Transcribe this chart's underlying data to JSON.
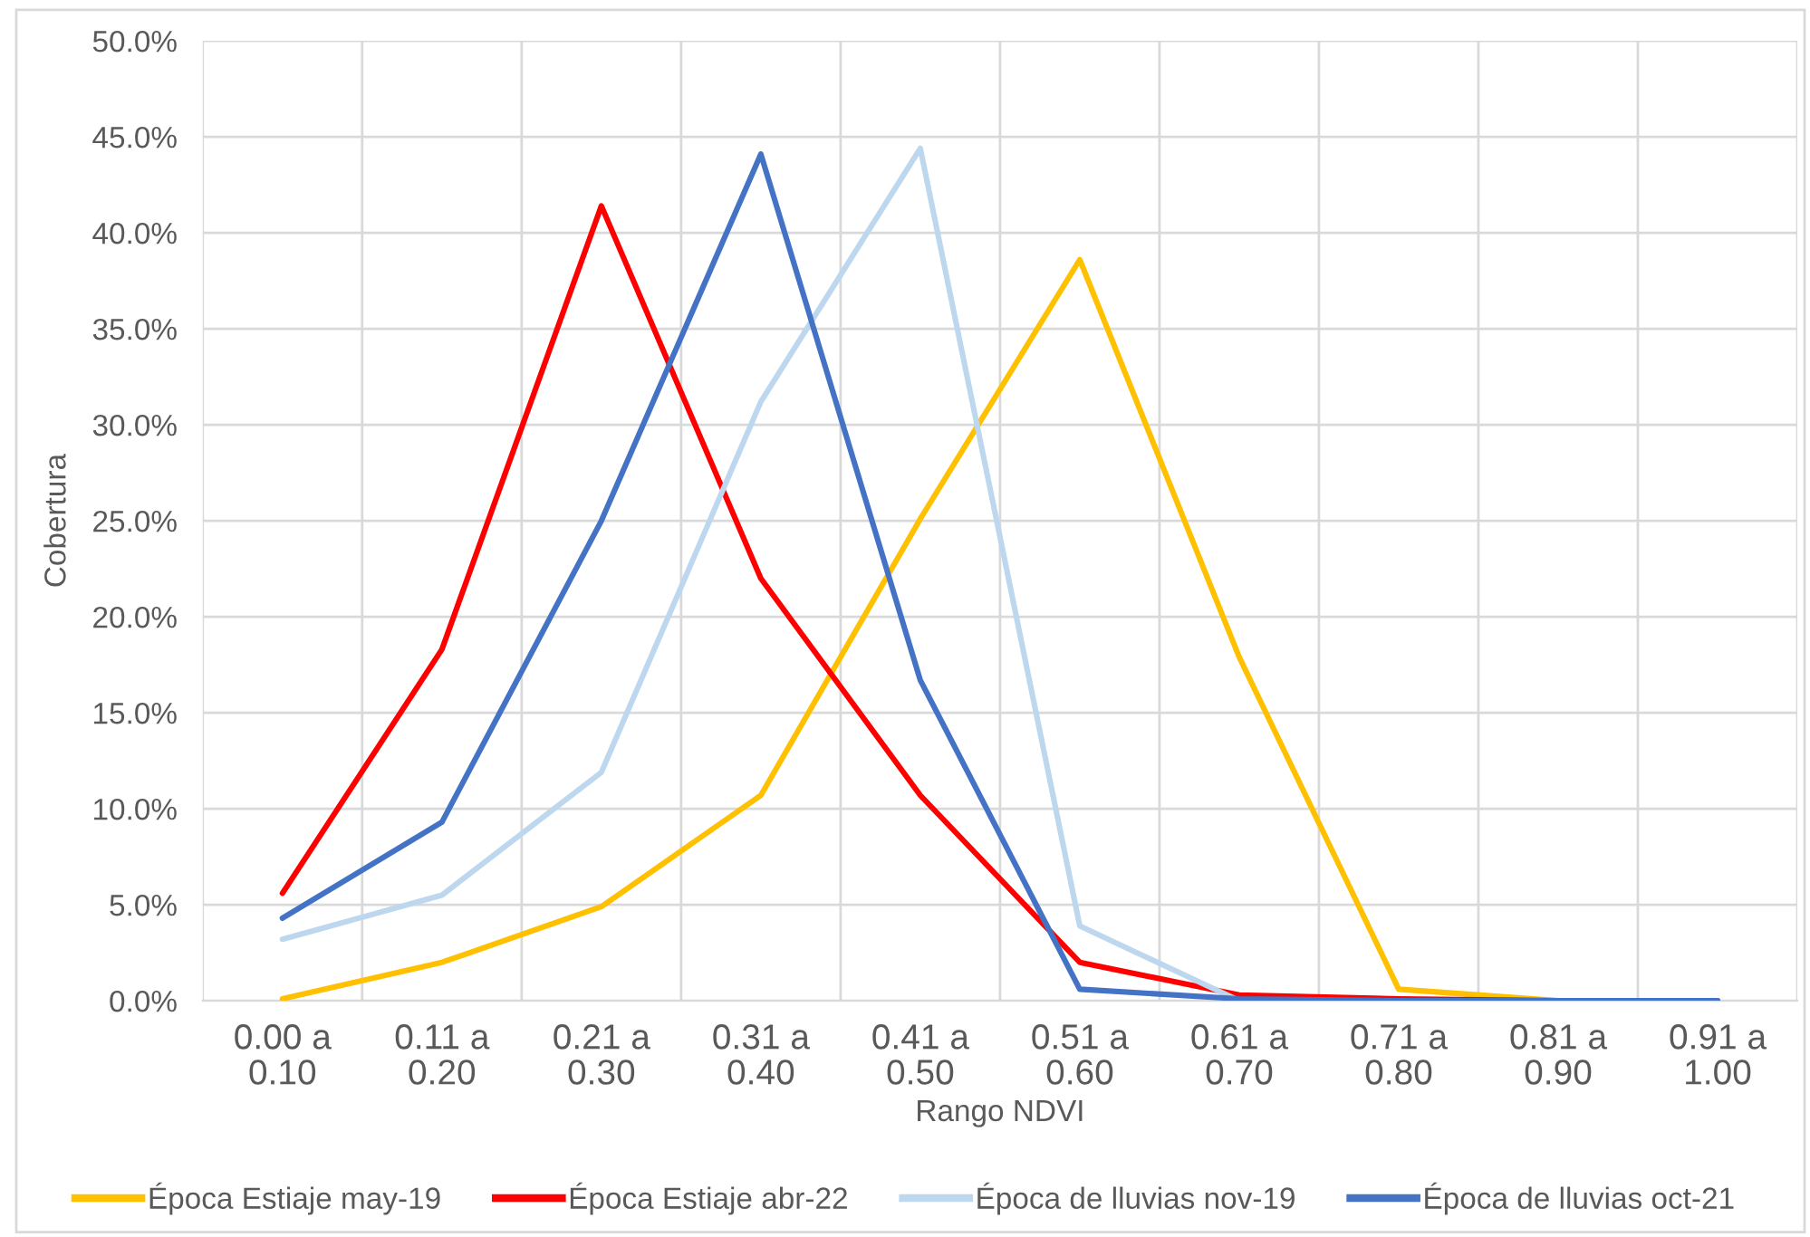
{
  "chart_data": {
    "type": "line",
    "xlabel": "Rango NDVI",
    "ylabel": "Cobertura",
    "categories": [
      "0.00 a 0.10",
      "0.11 a 0.20",
      "0.21 a 0.30",
      "0.31 a 0.40",
      "0.41 a 0.50",
      "0.51 a 0.60",
      "0.61 a 0.70",
      "0.71 a 0.80",
      "0.81 a 0.90",
      "0.91 a 1.00"
    ],
    "series": [
      {
        "name": "Época Estiaje may-19",
        "color": "#ffc000",
        "values": [
          0.1,
          2.0,
          4.9,
          10.7,
          25.1,
          38.6,
          17.9,
          0.6,
          0.0,
          0.0
        ]
      },
      {
        "name": "Época Estiaje abr-22",
        "color": "#ff0000",
        "values": [
          5.6,
          18.3,
          41.4,
          22.0,
          10.7,
          2.0,
          0.3,
          0.1,
          0.0,
          0.0
        ]
      },
      {
        "name": "Época de lluvias nov-19",
        "color": "#bdd7ee",
        "values": [
          3.2,
          5.5,
          11.9,
          31.2,
          44.4,
          3.9,
          0.0,
          0.0,
          0.0,
          0.0
        ]
      },
      {
        "name": "Época de lluvias oct-21",
        "color": "#4472c4",
        "values": [
          4.3,
          9.3,
          25.0,
          44.1,
          16.7,
          0.6,
          0.1,
          0.0,
          0.0,
          0.0
        ]
      }
    ],
    "ylim": [
      0,
      50
    ],
    "yticks": [
      {
        "value": 0,
        "label": "0.0%"
      },
      {
        "value": 5,
        "label": "5.0%"
      },
      {
        "value": 10,
        "label": "10.0%"
      },
      {
        "value": 15,
        "label": "15.0%"
      },
      {
        "value": 20,
        "label": "20.0%"
      },
      {
        "value": 25,
        "label": "25.0%"
      },
      {
        "value": 30,
        "label": "30.0%"
      },
      {
        "value": 35,
        "label": "35.0%"
      },
      {
        "value": 40,
        "label": "40.0%"
      },
      {
        "value": 45,
        "label": "45.0%"
      },
      {
        "value": 50,
        "label": "50.0%"
      }
    ],
    "grid": true,
    "legend": "bottom",
    "marker": "none",
    "line_style": "solid"
  }
}
